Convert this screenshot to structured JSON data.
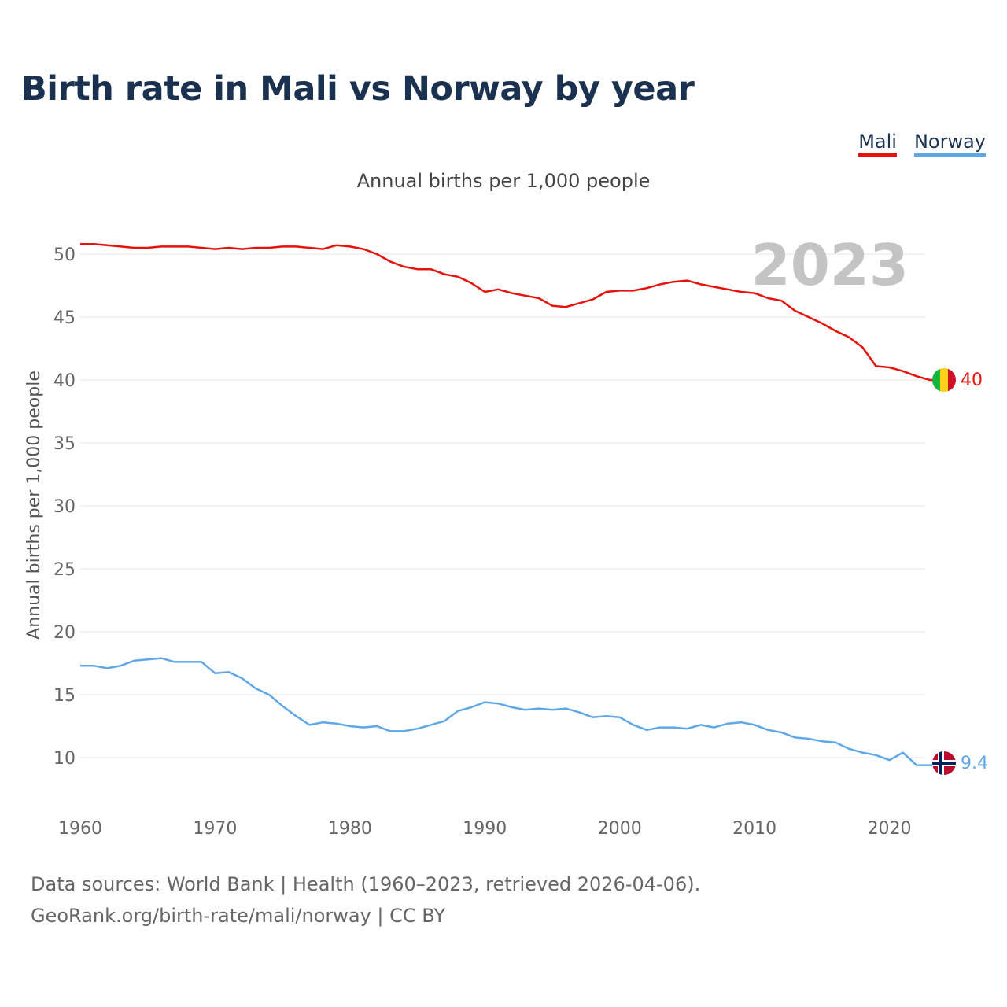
{
  "title": "Birth rate in Mali vs Norway by year",
  "legend": {
    "items": [
      {
        "label": "Mali",
        "color": "#e8120c"
      },
      {
        "label": "Norway",
        "color": "#5fa8e8"
      }
    ]
  },
  "subtitle": "Annual births per 1,000 people",
  "year_watermark": "2023",
  "end_labels": {
    "mali": "40",
    "norway": "9.4"
  },
  "footer": {
    "line1": "Data sources: World Bank | Health (1960–2023, retrieved 2026-04-06).",
    "line2": "GeoRank.org/birth-rate/mali/norway | CC BY"
  },
  "chart_data": {
    "type": "line",
    "title": "Birth rate in Mali vs Norway by year",
    "xlabel": "",
    "ylabel": "Annual births per 1,000 people",
    "xlim": [
      1960,
      2023
    ],
    "ylim": [
      7,
      52
    ],
    "x_ticks": [
      1960,
      1970,
      1980,
      1990,
      2000,
      2010,
      2020
    ],
    "y_ticks": [
      10,
      15,
      20,
      25,
      30,
      35,
      40,
      45,
      50
    ],
    "grid": true,
    "legend_position": "top-right",
    "x": [
      1960,
      1961,
      1962,
      1963,
      1964,
      1965,
      1966,
      1967,
      1968,
      1969,
      1970,
      1971,
      1972,
      1973,
      1974,
      1975,
      1976,
      1977,
      1978,
      1979,
      1980,
      1981,
      1982,
      1983,
      1984,
      1985,
      1986,
      1987,
      1988,
      1989,
      1990,
      1991,
      1992,
      1993,
      1994,
      1995,
      1996,
      1997,
      1998,
      1999,
      2000,
      2001,
      2002,
      2003,
      2004,
      2005,
      2006,
      2007,
      2008,
      2009,
      2010,
      2011,
      2012,
      2013,
      2014,
      2015,
      2016,
      2017,
      2018,
      2019,
      2020,
      2021,
      2022,
      2023
    ],
    "series": [
      {
        "name": "Mali",
        "color": "#e8120c",
        "values": [
          50.8,
          50.8,
          50.7,
          50.6,
          50.5,
          50.5,
          50.6,
          50.6,
          50.6,
          50.5,
          50.4,
          50.5,
          50.4,
          50.5,
          50.5,
          50.6,
          50.6,
          50.5,
          50.4,
          50.7,
          50.6,
          50.4,
          50.0,
          49.4,
          49.0,
          48.8,
          48.8,
          48.4,
          48.2,
          47.7,
          47.0,
          47.2,
          46.9,
          46.7,
          46.5,
          45.9,
          45.8,
          46.1,
          46.4,
          47.0,
          47.1,
          47.1,
          47.3,
          47.6,
          47.8,
          47.9,
          47.6,
          47.4,
          47.2,
          47.0,
          46.9,
          46.5,
          46.3,
          45.5,
          45.0,
          44.5,
          43.9,
          43.4,
          42.6,
          41.1,
          41.0,
          40.7,
          40.3,
          40.0
        ]
      },
      {
        "name": "Norway",
        "color": "#5fa8e8",
        "values": [
          17.3,
          17.3,
          17.1,
          17.3,
          17.7,
          17.8,
          17.9,
          17.6,
          17.6,
          17.6,
          16.7,
          16.8,
          16.3,
          15.5,
          15.0,
          14.1,
          13.3,
          12.6,
          12.8,
          12.7,
          12.5,
          12.4,
          12.5,
          12.1,
          12.1,
          12.3,
          12.6,
          12.9,
          13.7,
          14.0,
          14.4,
          14.3,
          14.0,
          13.8,
          13.9,
          13.8,
          13.9,
          13.6,
          13.2,
          13.3,
          13.2,
          12.6,
          12.2,
          12.4,
          12.4,
          12.3,
          12.6,
          12.4,
          12.7,
          12.8,
          12.6,
          12.2,
          12.0,
          11.6,
          11.5,
          11.3,
          11.2,
          10.7,
          10.4,
          10.2,
          9.8,
          10.4,
          9.4,
          9.4
        ]
      }
    ]
  }
}
